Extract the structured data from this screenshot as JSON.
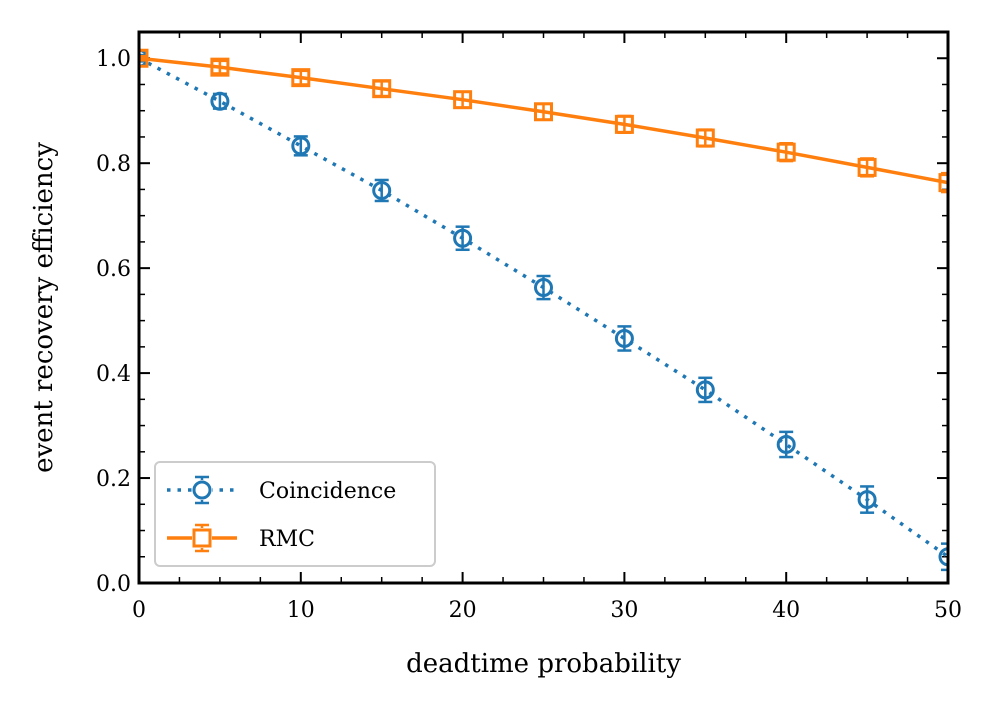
{
  "chart_data": {
    "type": "line",
    "title": "",
    "xlabel": "deadtime probability",
    "ylabel": "event recovery efficiency",
    "xlim": [
      0,
      50
    ],
    "ylim": [
      0.0,
      1.05
    ],
    "xticks": [
      0,
      10,
      20,
      30,
      40,
      50
    ],
    "yticks": [
      0.0,
      0.2,
      0.4,
      0.6,
      0.8,
      1.0
    ],
    "x_tick_labels": [
      "0",
      "10",
      "20",
      "30",
      "40",
      "50"
    ],
    "y_tick_labels": [
      "0.0",
      "0.2",
      "0.4",
      "0.6",
      "0.8",
      "1.0"
    ],
    "x_minor_step": 2.5,
    "y_minor_step": 0.05,
    "legend_position": "lower-left",
    "series": [
      {
        "name": "Coincidence",
        "color": "#1f77b4",
        "linestyle": "dotted",
        "marker": "circle",
        "x": [
          0,
          5,
          10,
          15,
          20,
          25,
          30,
          35,
          40,
          45,
          50
        ],
        "y": [
          1.0,
          0.918,
          0.833,
          0.748,
          0.657,
          0.563,
          0.466,
          0.368,
          0.264,
          0.159,
          0.05
        ],
        "yerr": [
          0.006,
          0.014,
          0.018,
          0.02,
          0.022,
          0.022,
          0.023,
          0.023,
          0.024,
          0.025,
          0.025
        ]
      },
      {
        "name": "RMC",
        "color": "#ff7f0e",
        "linestyle": "solid",
        "marker": "square",
        "x": [
          0,
          5,
          10,
          15,
          20,
          25,
          30,
          35,
          40,
          45,
          50
        ],
        "y": [
          1.0,
          0.983,
          0.963,
          0.942,
          0.921,
          0.898,
          0.874,
          0.848,
          0.821,
          0.792,
          0.763
        ],
        "yerr": [
          0.004,
          0.012,
          0.013,
          0.014,
          0.015,
          0.015,
          0.016,
          0.016,
          0.017,
          0.017,
          0.018
        ]
      }
    ]
  }
}
